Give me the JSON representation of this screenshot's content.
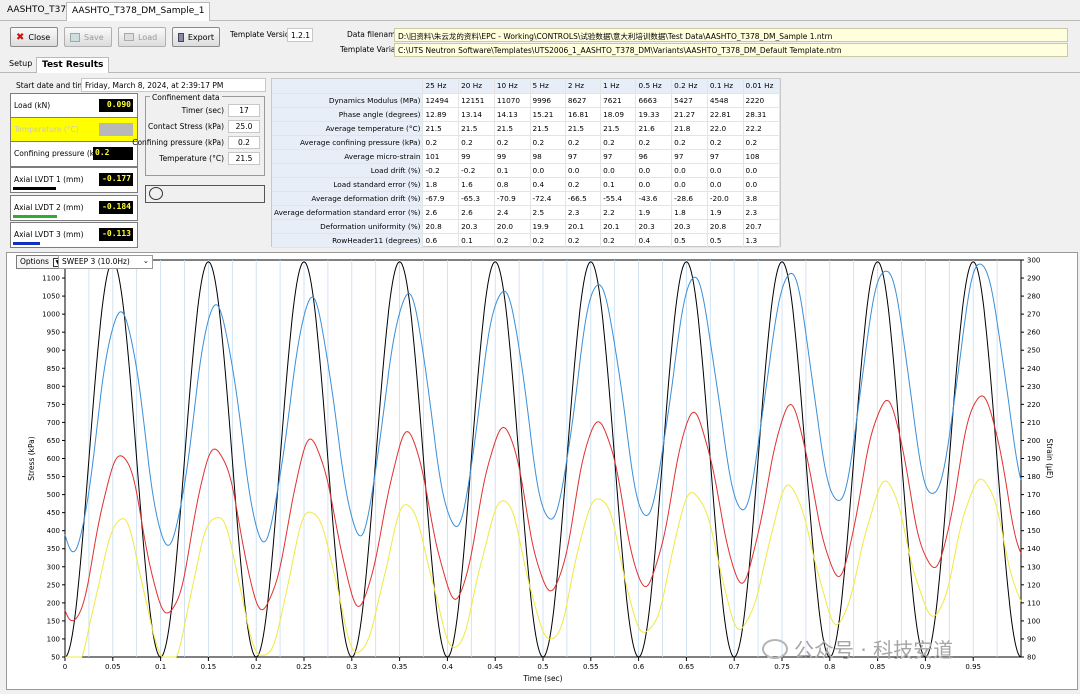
{
  "top_tabs": [
    "AASHTO_T378",
    "AASHTO_T378_DM_Sample_1"
  ],
  "toolbar": {
    "close": "Close",
    "save": "Save",
    "load": "Load",
    "export": "Export",
    "template_version_label": "Template Version",
    "template_version": "1.2.1",
    "data_filename_label": "Data filename",
    "data_filename": "D:\\旧资料\\朱云龙的资料\\EPC - Working\\CONTROLS\\试验数据\\意大利培训数据\\Test Data\\AASHTO_T378_DM_Sample 1.ntrn",
    "template_variant_label": "Template Variant",
    "template_variant": "C:\\UTS Neutron Software\\Templates\\UTS2006_1_AASHTO_T378_DM\\Variants\\AASHTO_T378_DM_Default Template.ntrn"
  },
  "sub_tabs": [
    "Setup",
    "Test Results"
  ],
  "start": {
    "label": "Start date and time",
    "value": "Friday, March 8, 2024, at 2:39:17 PM"
  },
  "measurements": [
    {
      "label": "Load (kN)",
      "value": "0.090",
      "bar_color": "",
      "bar_fraction": 0
    },
    {
      "label": "Temperature (°C)",
      "value": "",
      "bar_color": "",
      "bar_fraction": 0
    },
    {
      "label": "Confining pressure (kPa)",
      "value": "0.2",
      "bar_color": "",
      "bar_fraction": 0
    },
    {
      "label": "Axial LVDT 1 (mm)",
      "value": "-0.177",
      "bar_color": "#000000",
      "bar_fraction": 0.35
    },
    {
      "label": "Axial LVDT 2 (mm)",
      "value": "-0.184",
      "bar_color": "#33aa33",
      "bar_fraction": 0.36
    },
    {
      "label": "Axial LVDT 3 (mm)",
      "value": "-0.113",
      "bar_color": "#1030c0",
      "bar_fraction": 0.22
    }
  ],
  "confinement": {
    "title": "Confinement data",
    "rows": [
      {
        "label": "Timer (sec)",
        "value": "17"
      },
      {
        "label": "Contact Stress (kPa)",
        "value": "25.0"
      },
      {
        "label": "Confining pressure (kPa)",
        "value": "0.2"
      },
      {
        "label": "Temperature (°C)",
        "value": "21.5"
      }
    ]
  },
  "results_table": {
    "columns": [
      "25 Hz",
      "20 Hz",
      "10 Hz",
      "5 Hz",
      "2 Hz",
      "1 Hz",
      "0.5 Hz",
      "0.2 Hz",
      "0.1 Hz",
      "0.01 Hz"
    ],
    "rows": [
      {
        "header": "Dynamics Modulus (MPa)",
        "cells": [
          "12494",
          "12151",
          "11070",
          "9996",
          "8627",
          "7621",
          "6663",
          "5427",
          "4548",
          "2220"
        ]
      },
      {
        "header": "Phase angle (degrees)",
        "cells": [
          "12.89",
          "13.14",
          "14.13",
          "15.21",
          "16.81",
          "18.09",
          "19.33",
          "21.27",
          "22.81",
          "28.31"
        ]
      },
      {
        "header": "Average temperature (°C)",
        "cells": [
          "21.5",
          "21.5",
          "21.5",
          "21.5",
          "21.5",
          "21.5",
          "21.6",
          "21.8",
          "22.0",
          "22.2"
        ]
      },
      {
        "header": "Average confining pressure (kPa)",
        "cells": [
          "0.2",
          "0.2",
          "0.2",
          "0.2",
          "0.2",
          "0.2",
          "0.2",
          "0.2",
          "0.2",
          "0.2"
        ]
      },
      {
        "header": "Average micro-strain",
        "cells": [
          "101",
          "99",
          "99",
          "98",
          "97",
          "97",
          "96",
          "97",
          "97",
          "108"
        ]
      },
      {
        "header": "Load drift (%)",
        "cells": [
          "-0.2",
          "-0.2",
          "0.1",
          "0.0",
          "0.0",
          "0.0",
          "0.0",
          "0.0",
          "0.0",
          "0.0"
        ]
      },
      {
        "header": "Load standard error (%)",
        "cells": [
          "1.8",
          "1.6",
          "0.8",
          "0.4",
          "0.2",
          "0.1",
          "0.0",
          "0.0",
          "0.0",
          "0.0"
        ]
      },
      {
        "header": "Average deformation drift (%)",
        "cells": [
          "-67.9",
          "-65.3",
          "-70.9",
          "-72.4",
          "-66.5",
          "-55.4",
          "-43.6",
          "-28.6",
          "-20.0",
          "3.8"
        ]
      },
      {
        "header": "Average deformation standard error (%)",
        "cells": [
          "2.6",
          "2.6",
          "2.4",
          "2.5",
          "2.3",
          "2.2",
          "1.9",
          "1.8",
          "1.9",
          "2.3"
        ]
      },
      {
        "header": "Deformation uniformity (%)",
        "cells": [
          "20.8",
          "20.3",
          "20.0",
          "19.9",
          "20.1",
          "20.1",
          "20.3",
          "20.3",
          "20.8",
          "20.7"
        ]
      },
      {
        "header": "RowHeader11 (degrees)",
        "cells": [
          "0.6",
          "0.1",
          "0.2",
          "0.2",
          "0.2",
          "0.2",
          "0.4",
          "0.5",
          "0.5",
          "1.3"
        ]
      }
    ]
  },
  "chart_controls": {
    "options": "Options",
    "sweep": "SWEEP 3 (10.0Hz)"
  },
  "watermark": "公众号 · 科技安道",
  "chart_data": {
    "type": "line",
    "xlabel": "Time (sec)",
    "ylabel": "Stress (kPa)",
    "y2label": "Strain (µE)",
    "xlim": [
      0,
      1.0
    ],
    "ylim": [
      50,
      1150
    ],
    "y2lim": [
      80,
      300
    ],
    "xticks": [
      "0",
      "0.05",
      "0.1",
      "0.15",
      "0.2",
      "0.25",
      "0.3",
      "0.35",
      "0.4",
      "0.45",
      "0.5",
      "0.55",
      "0.6",
      "0.65",
      "0.7",
      "0.75",
      "0.8",
      "0.85",
      "0.9",
      "0.95"
    ],
    "yticks": [
      50,
      100,
      150,
      200,
      250,
      300,
      350,
      400,
      450,
      500,
      550,
      600,
      650,
      700,
      750,
      800,
      850,
      900,
      950,
      1000,
      1050,
      1100
    ],
    "y2ticks": [
      80,
      90,
      100,
      110,
      120,
      130,
      140,
      150,
      160,
      170,
      180,
      190,
      200,
      210,
      220,
      230,
      240,
      250,
      260,
      270,
      280,
      290,
      300
    ],
    "grid": "vertical",
    "series": [
      {
        "color": "#000000",
        "axis": "left",
        "frequency_hz": 10,
        "peak": 1145,
        "trough": 50,
        "phase_x_of_peak": 0.05
      },
      {
        "color": "#3a8fd8",
        "axis": "right",
        "frequency_hz": 10,
        "start_peak": 270,
        "end_peak": 300,
        "start_trough": 138,
        "end_trough": 172,
        "phase_x_of_peak": 0.058
      },
      {
        "color": "#e03030",
        "axis": "right",
        "frequency_hz": 10,
        "start_peak": 190,
        "end_peak": 227,
        "start_trough": 100,
        "end_trough": 132,
        "phase_x_of_peak": 0.058
      },
      {
        "color": "#f0e840",
        "axis": "right",
        "frequency_hz": 10,
        "start_peak": 155,
        "end_peak": 180,
        "start_trough": 72,
        "end_trough": 106,
        "phase_x_of_peak": 0.058
      }
    ]
  }
}
